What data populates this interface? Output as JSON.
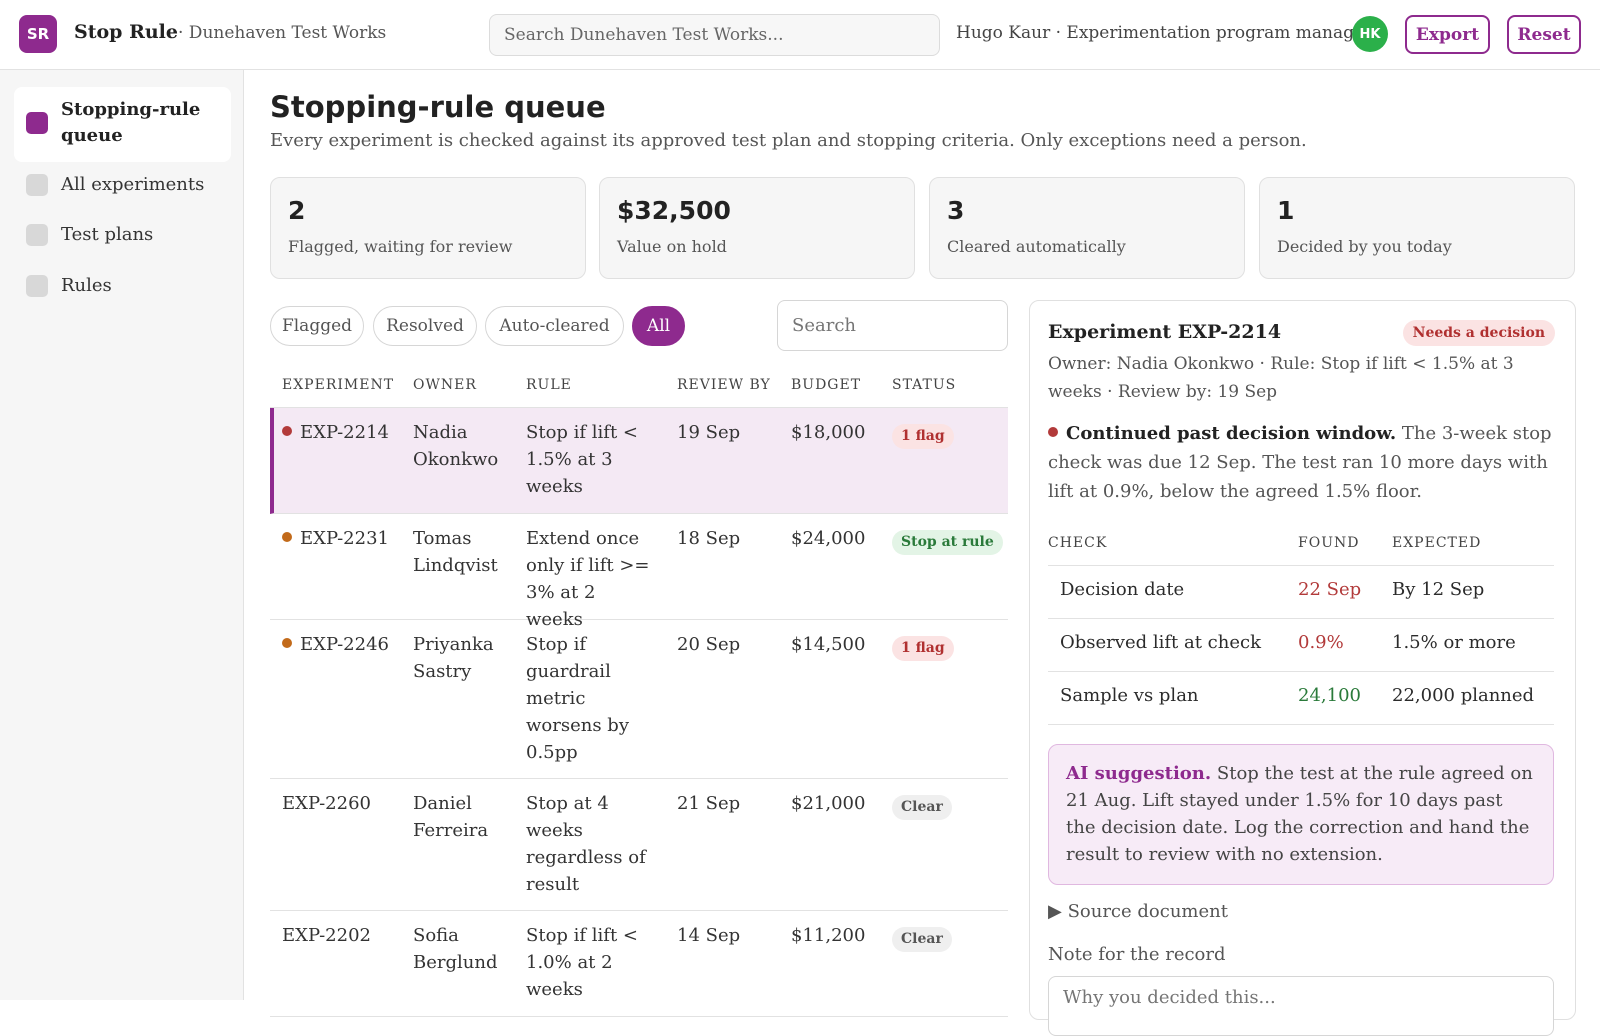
{
  "app": {
    "logo_initials": "SR",
    "name": "Stop Rule",
    "org": "· Dunehaven Test Works",
    "search_placeholder": "Search Dunehaven Test Works...",
    "user_line": "Hugo Kaur · Experimentation program manager",
    "avatar_initials": "HK",
    "export_label": "Export",
    "reset_label": "Reset"
  },
  "sidebar": {
    "items": [
      {
        "label": "Stopping-rule queue",
        "active": true
      },
      {
        "label": "All experiments"
      },
      {
        "label": "Test plans"
      },
      {
        "label": "Rules"
      }
    ]
  },
  "page": {
    "title": "Stopping-rule queue",
    "subtitle": "Every experiment is checked against its approved test plan and stopping criteria. Only exceptions need a person."
  },
  "stats": [
    {
      "value": "2",
      "label": "Flagged, waiting for review"
    },
    {
      "value": "$32,500",
      "label": "Value on hold"
    },
    {
      "value": "3",
      "label": "Cleared automatically"
    },
    {
      "value": "1",
      "label": "Decided by you today"
    }
  ],
  "filters": {
    "chips": [
      "Flagged",
      "Resolved",
      "Auto-cleared",
      "All"
    ],
    "active": "All",
    "search_placeholder": "Search"
  },
  "table": {
    "headers": [
      "EXPERIMENT",
      "OWNER",
      "RULE",
      "REVIEW BY",
      "BUDGET",
      "STATUS"
    ],
    "rows": [
      {
        "id": "EXP-2214",
        "owner": "Nadia Okonkwo",
        "rule": "Stop if lift < 1.5% at 3 weeks",
        "review_by": "19 Sep",
        "budget": "$18,000",
        "status": "1 flag",
        "status_kind": "flag",
        "dot": "#b23a3a"
      },
      {
        "id": "EXP-2231",
        "owner": "Tomas Lindqvist",
        "rule": "Extend once only if lift >= 3% at 2 weeks",
        "review_by": "18 Sep",
        "budget": "$24,000",
        "status": "Stop at rule",
        "status_kind": "ok",
        "dot": "#c26a1a"
      },
      {
        "id": "EXP-2246",
        "owner": "Priyanka Sastry",
        "rule": "Stop if guardrail metric worsens by 0.5pp",
        "review_by": "20 Sep",
        "budget": "$14,500",
        "status": "1 flag",
        "status_kind": "flag",
        "dot": "#c26a1a"
      },
      {
        "id": "EXP-2260",
        "owner": "Daniel Ferreira",
        "rule": "Stop at 4 weeks regardless of result",
        "review_by": "21 Sep",
        "budget": "$21,000",
        "status": "Clear",
        "status_kind": "clear",
        "dot": ""
      },
      {
        "id": "EXP-2202",
        "owner": "Sofia Berglund",
        "rule": "Stop if lift < 1.0% at 2 weeks",
        "review_by": "14 Sep",
        "budget": "$11,200",
        "status": "Clear",
        "status_kind": "clear",
        "dot": ""
      }
    ]
  },
  "detail": {
    "title": "Experiment EXP-2214",
    "badge": "Needs a decision",
    "meta": "Owner: Nadia Okonkwo · Rule: Stop if lift < 1.5% at 3 weeks · Review by: 19 Sep",
    "finding_title": "Continued past decision window.",
    "finding_text": " The 3-week stop check was due 12 Sep. The test ran 10 more days with lift at 0.9%, below the agreed 1.5% floor.",
    "check_headers": [
      "CHECK",
      "FOUND",
      "EXPECTED"
    ],
    "checks": [
      {
        "check": "Decision date",
        "found": "22 Sep",
        "expected": "By 12 Sep",
        "found_color": "#b23a3a"
      },
      {
        "check": "Observed lift at check",
        "found": "0.9%",
        "expected": "1.5% or more",
        "found_color": "#b23a3a"
      },
      {
        "check": "Sample vs plan",
        "found": "24,100",
        "expected": "22,000 planned",
        "found_color": "#2a7a3a"
      }
    ],
    "ai_title": "AI suggestion.",
    "ai_text": " Stop the test at the rule agreed on 21 Aug. Lift stayed under 1.5% for 10 days past the decision date. Log the correction and hand the result to review with no extension.",
    "source_label": "▶ Source document",
    "note_label": "Note for the record",
    "note_placeholder": "Why you decided this..."
  },
  "colors": {
    "accent": "#8e2a8e",
    "flag": "#b23a3a",
    "ok": "#2a7a3a"
  }
}
